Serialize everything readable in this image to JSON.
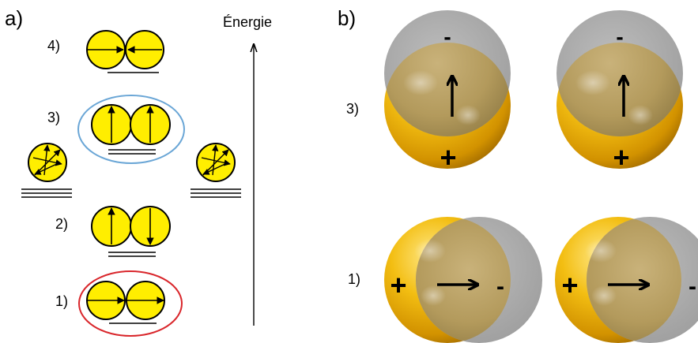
{
  "panel_a": {
    "label": "a)",
    "axis_label": "Énergie",
    "levels": [
      {
        "label": "4)",
        "pair": "head-to-tail-opposed"
      },
      {
        "label": "3)",
        "pair": "parallel-up",
        "highlight": "#6aa6d6"
      },
      {
        "label": "2)",
        "pair": "antiparallel"
      },
      {
        "label": "1)",
        "pair": "head-to-tail",
        "highlight": "#d9262b"
      }
    ],
    "side_monomers": "isotropic"
  },
  "panel_b": {
    "label": "b)",
    "rows": [
      {
        "label": "3)",
        "orientation": "vertical",
        "plus": "+",
        "minus": "-"
      },
      {
        "label": "1)",
        "orientation": "horizontal",
        "plus": "+",
        "minus": "-"
      }
    ]
  },
  "colors": {
    "dipole_fill": "#ffee00",
    "gold": "#f2b705",
    "gray": "#a8a8a8",
    "line": "#000000"
  }
}
